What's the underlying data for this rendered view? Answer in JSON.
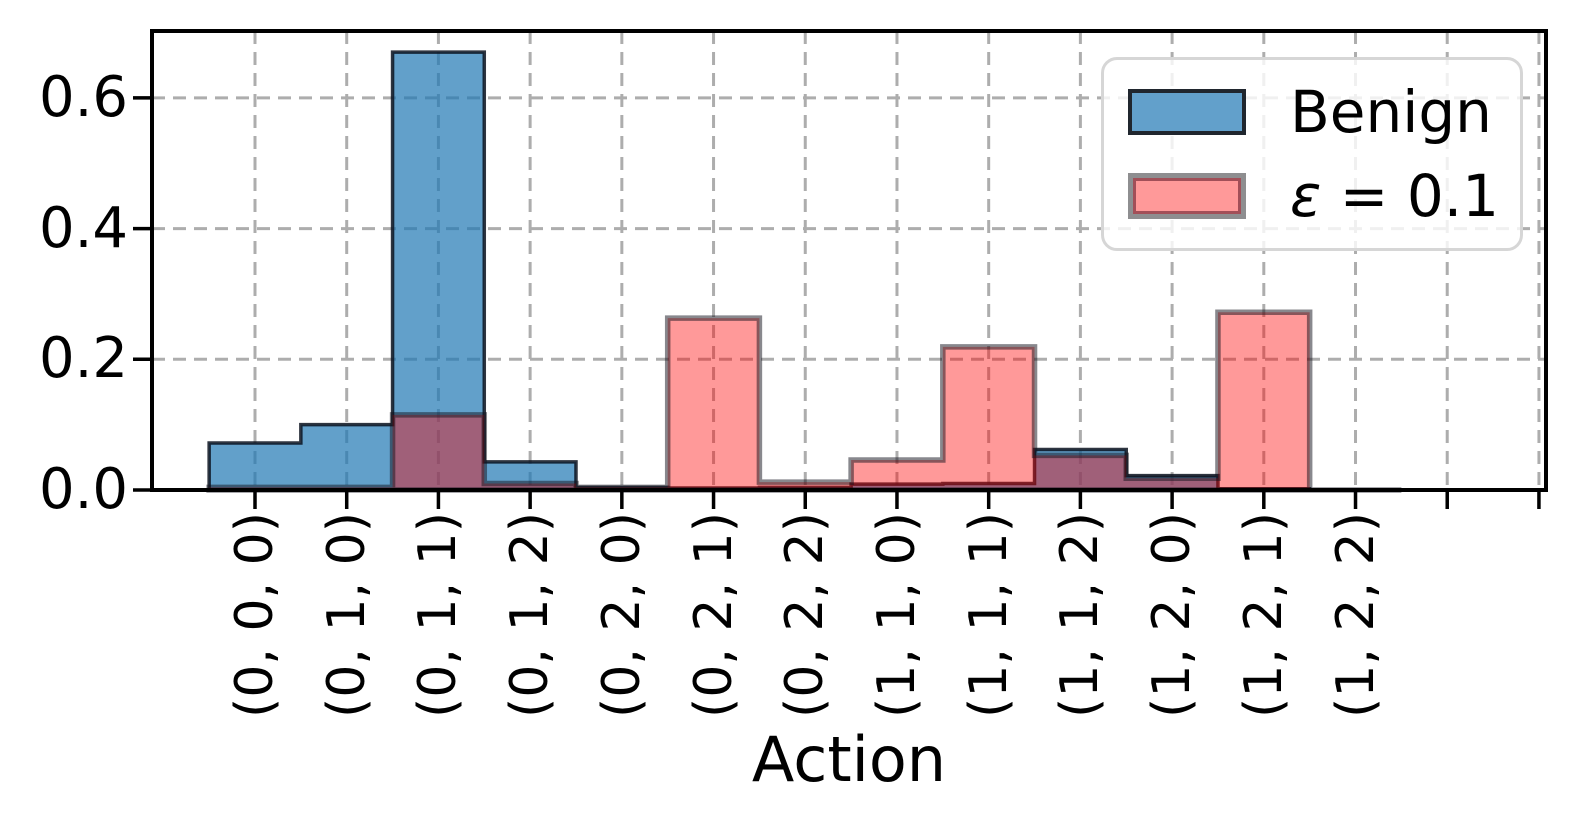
{
  "figure": {
    "background": "#ffffff"
  },
  "chart_data": {
    "type": "bar",
    "subtype": "overlaid-step-histogram",
    "title": "",
    "xlabel": "Action",
    "ylabel": "",
    "categories": [
      "(0, 0, 0)",
      "(0, 1, 0)",
      "(0, 1, 1)",
      "(0, 1, 2)",
      "(0, 2, 0)",
      "(0, 2, 1)",
      "(0, 2, 2)",
      "(1, 1, 0)",
      "(1, 1, 1)",
      "(1, 1, 2)",
      "(1, 2, 0)",
      "(1, 2, 1)",
      "(1, 2, 2)"
    ],
    "series": [
      {
        "name": "Benign",
        "values": [
          0.072,
          0.1,
          0.67,
          0.043,
          0.004,
          0.003,
          0.004,
          0.009,
          0.01,
          0.062,
          0.022,
          0.002,
          0.0
        ],
        "fill_rgba": "rgba(31,119,180,0.7)",
        "edge_rgba": "rgba(10,18,30,0.85)",
        "edge_width": 3.5
      },
      {
        "name": "ε = 0.1",
        "values": [
          0.004,
          0.004,
          0.115,
          0.01,
          0.004,
          0.263,
          0.012,
          0.046,
          0.219,
          0.053,
          0.018,
          0.272,
          0.0
        ],
        "fill_rgba": "rgba(255,0,0,0.4)",
        "edge_rgba": "rgba(18,18,28,0.5)",
        "edge_width": 5.5
      }
    ],
    "ytick_labels": [
      "0.0",
      "0.2",
      "0.4",
      "0.6"
    ],
    "ytick_values": [
      0.0,
      0.2,
      0.4,
      0.6
    ],
    "ylim": [
      0,
      0.703
    ],
    "n_xticks_total": 15,
    "grid": {
      "on": true,
      "style": "dashed",
      "color": "#adadad"
    },
    "legend_position": "upper right"
  },
  "legend": {
    "items": [
      {
        "label": "Benign"
      },
      {
        "symbol": "ε",
        "suffix": " = 0.1",
        "label": "ε = 0.1"
      }
    ]
  }
}
